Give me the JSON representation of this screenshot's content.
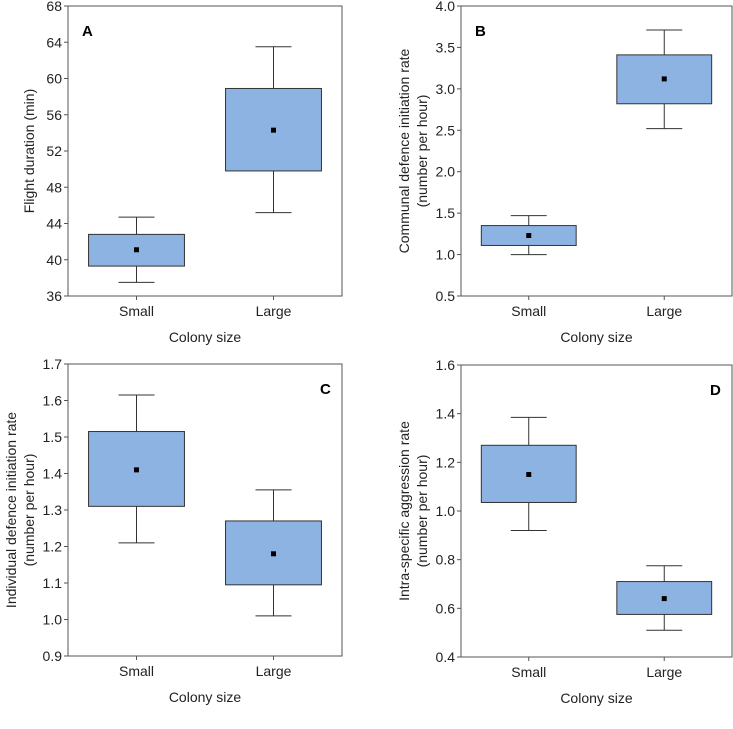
{
  "chart_data": [
    {
      "type": "box",
      "panel_label": "A",
      "panel_label_position": "top-left",
      "xlabel": "Colony size",
      "ylabel": [
        "Flight duration (min)"
      ],
      "categories": [
        "Small",
        "Large"
      ],
      "ylim": [
        36,
        68
      ],
      "yticks": [
        36,
        40,
        44,
        48,
        52,
        56,
        60,
        64,
        68
      ],
      "ytick_labels": [
        "36",
        "40",
        "44",
        "48",
        "52",
        "56",
        "60",
        "64",
        "68"
      ],
      "boxes": [
        {
          "whisker_low": 37.5,
          "box_low": 39.3,
          "mean": 41.1,
          "box_high": 42.8,
          "whisker_high": 44.7
        },
        {
          "whisker_low": 45.2,
          "box_low": 49.8,
          "mean": 54.3,
          "box_high": 58.9,
          "whisker_high": 63.5
        }
      ]
    },
    {
      "type": "box",
      "panel_label": "B",
      "panel_label_position": "top-left",
      "xlabel": "Colony size",
      "ylabel": [
        "Communal defence initiation rate",
        "(number per hour)"
      ],
      "categories": [
        "Small",
        "Large"
      ],
      "ylim": [
        0.5,
        4.0
      ],
      "yticks": [
        0.5,
        1.0,
        1.5,
        2.0,
        2.5,
        3.0,
        3.5,
        4.0
      ],
      "ytick_labels": [
        "0.5",
        "1.0",
        "1.5",
        "2.0",
        "2.5",
        "3.0",
        "3.5",
        "4.0"
      ],
      "boxes": [
        {
          "whisker_low": 1.0,
          "box_low": 1.11,
          "mean": 1.23,
          "box_high": 1.35,
          "whisker_high": 1.47
        },
        {
          "whisker_low": 2.52,
          "box_low": 2.82,
          "mean": 3.12,
          "box_high": 3.41,
          "whisker_high": 3.71
        }
      ]
    },
    {
      "type": "box",
      "panel_label": "C",
      "panel_label_position": "top-right",
      "xlabel": "Colony size",
      "ylabel": [
        "Individual defence initiation rate",
        "(number per hour)"
      ],
      "categories": [
        "Small",
        "Large"
      ],
      "ylim": [
        0.9,
        1.7
      ],
      "yticks": [
        0.9,
        1.0,
        1.1,
        1.2,
        1.3,
        1.4,
        1.5,
        1.6,
        1.7
      ],
      "ytick_labels": [
        "0.9",
        "1.0",
        "1.1",
        "1.2",
        "1.3",
        "1.4",
        "1.5",
        "1.6",
        "1.7"
      ],
      "boxes": [
        {
          "whisker_low": 1.21,
          "box_low": 1.31,
          "mean": 1.41,
          "box_high": 1.515,
          "whisker_high": 1.615
        },
        {
          "whisker_low": 1.01,
          "box_low": 1.095,
          "mean": 1.18,
          "box_high": 1.27,
          "whisker_high": 1.355
        }
      ]
    },
    {
      "type": "box",
      "panel_label": "D",
      "panel_label_position": "top-right",
      "xlabel": "Colony size",
      "ylabel": [
        "Intra-specific aggression rate",
        "(number per hour)"
      ],
      "categories": [
        "Small",
        "Large"
      ],
      "ylim": [
        0.4,
        1.6
      ],
      "yticks": [
        0.4,
        0.6,
        0.8,
        1.0,
        1.2,
        1.4,
        1.6
      ],
      "ytick_labels": [
        "0.4",
        "0.6",
        "0.8",
        "1.0",
        "1.2",
        "1.4",
        "1.6"
      ],
      "boxes": [
        {
          "whisker_low": 0.92,
          "box_low": 1.035,
          "mean": 1.15,
          "box_high": 1.27,
          "whisker_high": 1.385
        },
        {
          "whisker_low": 0.51,
          "box_low": 0.575,
          "mean": 0.64,
          "box_high": 0.71,
          "whisker_high": 0.775
        }
      ]
    }
  ],
  "colors": {
    "box_fill": "#8db3e2",
    "box_stroke": "#333333",
    "axis": "#555555",
    "mean_marker": "#000000"
  }
}
